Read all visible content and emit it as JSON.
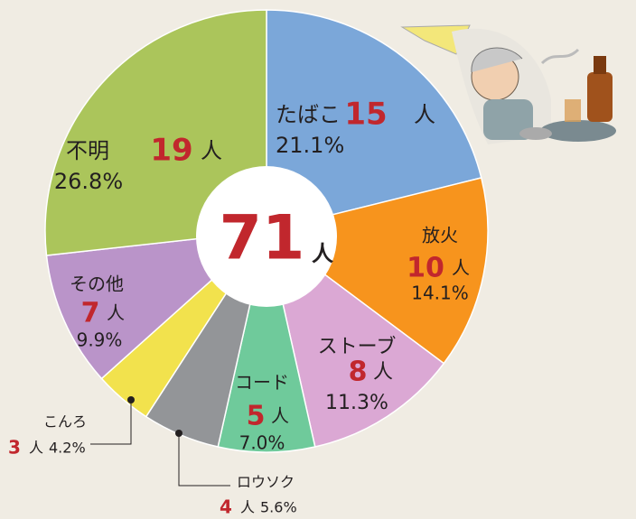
{
  "chart_data": {
    "type": "pie",
    "categories": [
      "たばこ",
      "放火",
      "ストーブ",
      "コード",
      "ロウソク",
      "こんろ",
      "その他",
      "不明"
    ],
    "values": [
      15,
      10,
      8,
      5,
      4,
      3,
      7,
      19
    ],
    "percent_labels": [
      "21.1%",
      "14.1%",
      "11.3%",
      "7.0%",
      "5.6%",
      "4.2%",
      "9.9%",
      "26.8%"
    ],
    "colors": [
      "#7ba7d9",
      "#f7941d",
      "#dba8d4",
      "#6fca9b",
      "#939598",
      "#f2e24d",
      "#ba94c9",
      "#abc55b"
    ],
    "unit": "人",
    "total": 71
  }
}
